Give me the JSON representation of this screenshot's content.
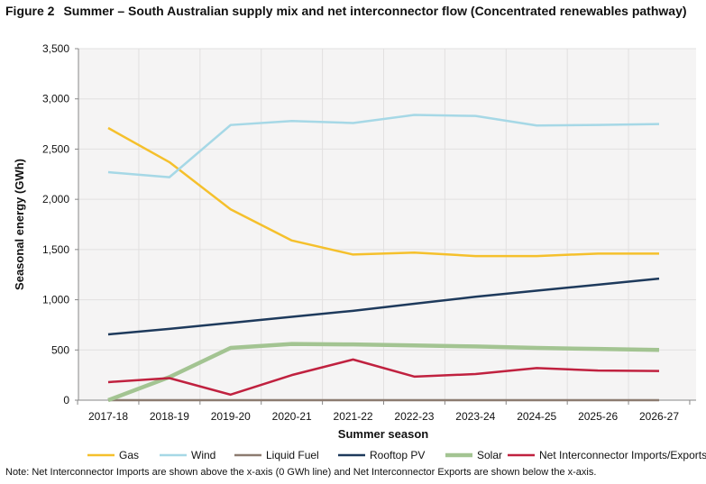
{
  "figure_label": "Figure 2",
  "note": "Note: Net Interconnector Imports are shown above the x-axis (0 GWh line) and Net Interconnector Exports are shown below the x-axis.",
  "chart_data": {
    "type": "line",
    "title": "Summer – South Australian supply mix and net interconnector flow (Concentrated renewables pathway)",
    "xlabel": "Summer season",
    "ylabel": "Seasonal energy (GWh)",
    "ylim": [
      0,
      3500
    ],
    "yticks": [
      0,
      500,
      1000,
      1500,
      2000,
      2500,
      3000,
      3500
    ],
    "ytick_labels": [
      "0",
      "500",
      "1,000",
      "1,500",
      "2,000",
      "2,500",
      "3,000",
      "3,500"
    ],
    "grid": true,
    "legend_placement": "bottom",
    "categories": [
      "2017-18",
      "2018-19",
      "2019-20",
      "2020-21",
      "2021-22",
      "2022-23",
      "2023-24",
      "2024-25",
      "2025-26",
      "2026-27"
    ],
    "series": [
      {
        "name": "Gas",
        "color": "#f5c02c",
        "values": [
          2710,
          2370,
          1900,
          1590,
          1450,
          1470,
          1435,
          1435,
          1460,
          1460
        ]
      },
      {
        "name": "Wind",
        "color": "#a6d8e6",
        "values": [
          2270,
          2220,
          2740,
          2780,
          2760,
          2840,
          2830,
          2735,
          2740,
          2750
        ]
      },
      {
        "name": "Liquid Fuel",
        "color": "#8c7b70",
        "values": [
          0,
          0,
          0,
          0,
          0,
          0,
          0,
          0,
          0,
          0
        ]
      },
      {
        "name": "Rooftop PV",
        "color": "#1e3a5c",
        "values": [
          655,
          710,
          770,
          830,
          890,
          960,
          1030,
          1090,
          1150,
          1210
        ]
      },
      {
        "name": "Solar",
        "color": "#a3c492",
        "values": [
          0,
          230,
          520,
          560,
          555,
          545,
          535,
          520,
          510,
          500
        ]
      },
      {
        "name": "Net Interconnector Imports/Exports",
        "color": "#c0213f",
        "values": [
          180,
          220,
          55,
          250,
          405,
          235,
          260,
          320,
          295,
          290
        ]
      }
    ]
  }
}
